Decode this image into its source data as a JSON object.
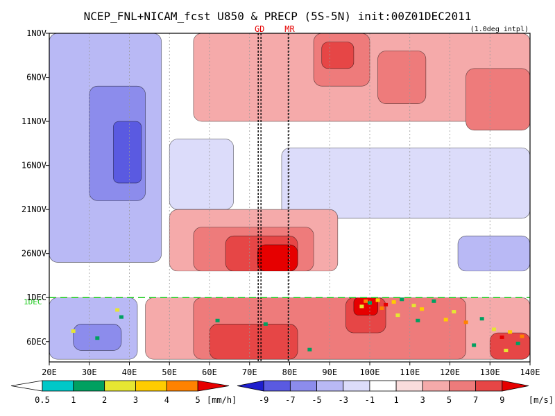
{
  "chart_data": {
    "type": "heatmap",
    "title": "NCEP_FNL+NICAM_fcst U850 & PRECP (5S-5N) init:00Z01DEC2011",
    "subtitle": "(1.0deg intpl)",
    "x_axis": {
      "range": [
        20,
        140
      ],
      "unit": "degE",
      "ticks": [
        20,
        30,
        40,
        50,
        60,
        70,
        80,
        90,
        100,
        110,
        120,
        130,
        140
      ],
      "tick_labels": [
        "20E",
        "30E",
        "40E",
        "50E",
        "60E",
        "70E",
        "80E",
        "90E",
        "100E",
        "110E",
        "120E",
        "130E",
        "140E"
      ]
    },
    "y_axis": {
      "range": [
        "1NOV",
        "8DEC"
      ],
      "direction": "time increases downward",
      "ticks": [
        1,
        6,
        11,
        16,
        21,
        26,
        31,
        36
      ],
      "tick_labels": [
        "1NOV",
        "6NOV",
        "11NOV",
        "16NOV",
        "21NOV",
        "26NOV",
        "1DEC",
        "6DEC"
      ]
    },
    "markers": [
      {
        "label": "GD",
        "lon": 72.5
      },
      {
        "label": "MR",
        "lon": 80
      }
    ],
    "init_line": {
      "day": 31,
      "label": "1DEC"
    },
    "data_gap_days": [
      28,
      31
    ],
    "precip_colorbar": {
      "levels": [
        "0.5",
        "1",
        "2",
        "3",
        "4",
        "5"
      ],
      "unit": "[mm/h]",
      "colors": [
        "#00c8c8",
        "#00a060",
        "#e6e632",
        "#ffcc00",
        "#ff8200",
        "#e60000"
      ]
    },
    "wind_colorbar": {
      "levels": [
        "-9",
        "-7",
        "-5",
        "-3",
        "-1",
        "1",
        "3",
        "5",
        "7",
        "9"
      ],
      "unit": "[m/s]",
      "colors": [
        "#1e1ecd",
        "#5a5ae1",
        "#8c8cec",
        "#b9b9f5",
        "#dcdcfa",
        "#ffffff",
        "#fadcdc",
        "#f5aaaa",
        "#ee7b7b",
        "#e64646",
        "#e60000"
      ]
    },
    "u850_regions": [
      {
        "lon": [
          20,
          48
        ],
        "days": [
          1,
          27
        ],
        "u": -4
      },
      {
        "lon": [
          30,
          44
        ],
        "days": [
          7,
          20
        ],
        "u": -6
      },
      {
        "lon": [
          36,
          43
        ],
        "days": [
          11,
          18
        ],
        "u": -8
      },
      {
        "lon": [
          50,
          66
        ],
        "days": [
          13,
          21
        ],
        "u": -3
      },
      {
        "lon": [
          78,
          140
        ],
        "days": [
          14,
          22
        ],
        "u": -3
      },
      {
        "lon": [
          122,
          140
        ],
        "days": [
          24,
          28
        ],
        "u": -5
      },
      {
        "lon": [
          20,
          42
        ],
        "days": [
          31,
          38
        ],
        "u": -4
      },
      {
        "lon": [
          26,
          38
        ],
        "days": [
          34,
          37
        ],
        "u": -6
      },
      {
        "lon": [
          56,
          140
        ],
        "days": [
          1,
          11
        ],
        "u": 3
      },
      {
        "lon": [
          86,
          100
        ],
        "days": [
          1,
          7
        ],
        "u": 5
      },
      {
        "lon": [
          88,
          96
        ],
        "days": [
          2,
          5
        ],
        "u": 7
      },
      {
        "lon": [
          102,
          114
        ],
        "days": [
          3,
          9
        ],
        "u": 5
      },
      {
        "lon": [
          124,
          140
        ],
        "days": [
          5,
          12
        ],
        "u": 5
      },
      {
        "lon": [
          50,
          92
        ],
        "days": [
          21,
          28
        ],
        "u": 3
      },
      {
        "lon": [
          56,
          86
        ],
        "days": [
          23,
          28
        ],
        "u": 5
      },
      {
        "lon": [
          64,
          82
        ],
        "days": [
          24,
          28
        ],
        "u": 7
      },
      {
        "lon": [
          72,
          82
        ],
        "days": [
          25,
          28
        ],
        "u": 9
      },
      {
        "lon": [
          44,
          140
        ],
        "days": [
          31,
          38
        ],
        "u": 3
      },
      {
        "lon": [
          56,
          124
        ],
        "days": [
          31,
          38
        ],
        "u": 5
      },
      {
        "lon": [
          60,
          82
        ],
        "days": [
          34,
          38
        ],
        "u": 7
      },
      {
        "lon": [
          94,
          104
        ],
        "days": [
          31,
          35
        ],
        "u": 7
      },
      {
        "lon": [
          96,
          102
        ],
        "days": [
          31,
          33
        ],
        "u": 9
      },
      {
        "lon": [
          130,
          140
        ],
        "days": [
          35,
          38
        ],
        "u": 7
      }
    ],
    "precip_cells": [
      {
        "lon": 99,
        "day": 31.4,
        "p": 4
      },
      {
        "lon": 100,
        "day": 31.6,
        "p": 1
      },
      {
        "lon": 102,
        "day": 31.3,
        "p": 3
      },
      {
        "lon": 104,
        "day": 31.8,
        "p": 5
      },
      {
        "lon": 106,
        "day": 31.5,
        "p": 3
      },
      {
        "lon": 108,
        "day": 31.2,
        "p": 1
      },
      {
        "lon": 98,
        "day": 32.0,
        "p": 2
      },
      {
        "lon": 103,
        "day": 32.2,
        "p": 4
      },
      {
        "lon": 111,
        "day": 31.9,
        "p": 2
      },
      {
        "lon": 113,
        "day": 32.3,
        "p": 3
      },
      {
        "lon": 116,
        "day": 31.4,
        "p": 1
      },
      {
        "lon": 119,
        "day": 33.5,
        "p": 3
      },
      {
        "lon": 121,
        "day": 32.6,
        "p": 2
      },
      {
        "lon": 124,
        "day": 33.8,
        "p": 4
      },
      {
        "lon": 128,
        "day": 33.4,
        "p": 1
      },
      {
        "lon": 131,
        "day": 34.6,
        "p": 2
      },
      {
        "lon": 133,
        "day": 35.5,
        "p": 5
      },
      {
        "lon": 135,
        "day": 34.9,
        "p": 3
      },
      {
        "lon": 137,
        "day": 36.2,
        "p": 1
      },
      {
        "lon": 138,
        "day": 35.4,
        "p": 4
      },
      {
        "lon": 134,
        "day": 37.0,
        "p": 2
      },
      {
        "lon": 126,
        "day": 36.4,
        "p": 1
      },
      {
        "lon": 112,
        "day": 33.6,
        "p": 1
      },
      {
        "lon": 107,
        "day": 33.0,
        "p": 2
      },
      {
        "lon": 37,
        "day": 32.4,
        "p": 2
      },
      {
        "lon": 38,
        "day": 33.2,
        "p": 1
      },
      {
        "lon": 26,
        "day": 34.8,
        "p": 2
      },
      {
        "lon": 32,
        "day": 35.6,
        "p": 1
      },
      {
        "lon": 62,
        "day": 33.6,
        "p": 1
      },
      {
        "lon": 85,
        "day": 36.9,
        "p": 1
      },
      {
        "lon": 74,
        "day": 34.0,
        "p": 1
      }
    ]
  }
}
